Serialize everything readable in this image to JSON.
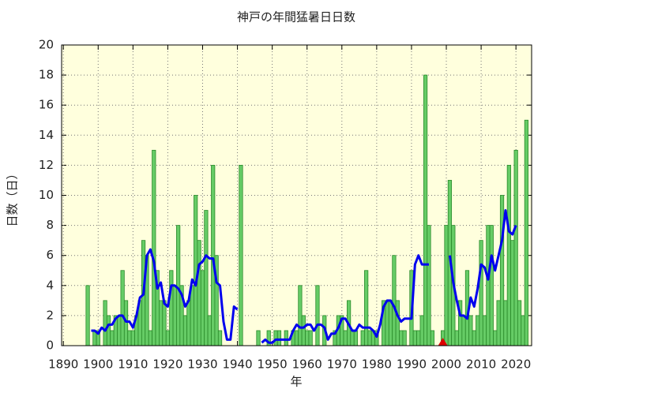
{
  "chart_data": {
    "type": "bar",
    "title": "神戸の年間猛暑日日数",
    "xlabel": "年",
    "ylabel": "日数（日）",
    "xlim": [
      1889.5,
      2024.5
    ],
    "ylim": [
      0,
      20
    ],
    "xticks": [
      1890,
      1900,
      1910,
      1920,
      1930,
      1940,
      1950,
      1960,
      1970,
      1980,
      1990,
      2000,
      2010,
      2020
    ],
    "yticks": [
      0,
      2,
      4,
      6,
      8,
      10,
      12,
      14,
      16,
      18,
      20
    ],
    "grid": true,
    "background": "#ffffdd",
    "x": [
      1897,
      1898,
      1899,
      1900,
      1901,
      1902,
      1903,
      1904,
      1905,
      1906,
      1907,
      1908,
      1909,
      1910,
      1911,
      1912,
      1913,
      1914,
      1915,
      1916,
      1917,
      1918,
      1919,
      1920,
      1921,
      1922,
      1923,
      1924,
      1925,
      1926,
      1927,
      1928,
      1929,
      1930,
      1931,
      1932,
      1933,
      1934,
      1935,
      1936,
      1937,
      1938,
      1939,
      1940,
      1941,
      1942,
      1943,
      1944,
      1945,
      1946,
      1947,
      1948,
      1949,
      1950,
      1951,
      1952,
      1953,
      1954,
      1955,
      1956,
      1957,
      1958,
      1959,
      1960,
      1961,
      1962,
      1963,
      1964,
      1965,
      1966,
      1967,
      1968,
      1969,
      1970,
      1971,
      1972,
      1973,
      1974,
      1975,
      1976,
      1977,
      1978,
      1979,
      1980,
      1981,
      1982,
      1983,
      1984,
      1985,
      1986,
      1987,
      1988,
      1989,
      1990,
      1991,
      1992,
      1993,
      1994,
      1995,
      1996,
      1997,
      1998,
      1999,
      2000,
      2001,
      2002,
      2003,
      2004,
      2005,
      2006,
      2007,
      2008,
      2009,
      2010,
      2011,
      2012,
      2013,
      2014,
      2015,
      2016,
      2017,
      2018,
      2019,
      2020,
      2021,
      2022,
      2023
    ],
    "series": [
      {
        "kind": "bar",
        "color": "#66cc66",
        "edge": "#2a8a2a",
        "values": [
          4,
          0,
          1,
          1,
          0,
          3,
          2,
          1,
          2,
          2,
          5,
          3,
          1,
          1,
          2,
          3,
          7,
          6,
          1,
          13,
          5,
          3,
          3,
          1,
          5,
          4,
          8,
          4,
          2,
          3,
          4,
          10,
          7,
          5,
          9,
          2,
          12,
          6,
          1,
          0,
          0,
          0,
          0,
          0,
          12,
          null,
          null,
          null,
          null,
          1,
          0,
          0,
          1,
          0,
          1,
          1,
          0,
          1,
          0,
          1,
          1,
          4,
          2,
          1,
          1,
          0,
          4,
          0,
          2,
          0,
          0,
          1,
          2,
          2,
          1,
          3,
          1,
          1,
          0,
          1,
          5,
          1,
          1,
          1,
          0,
          3,
          3,
          3,
          6,
          3,
          1,
          1,
          0,
          5,
          1,
          1,
          2,
          18,
          8,
          1,
          0,
          0,
          1,
          8,
          11,
          8,
          1,
          3,
          2,
          5,
          2,
          1,
          2,
          7,
          2,
          8,
          8,
          1,
          3,
          10,
          3,
          12,
          7,
          13,
          3,
          2,
          15
        ]
      },
      {
        "kind": "line",
        "color": "#0000ee",
        "values": [
          null,
          1.0,
          1.0,
          0.8,
          1.2,
          1.0,
          1.4,
          1.4,
          1.8,
          2.0,
          2.0,
          1.6,
          1.6,
          1.2,
          2.0,
          3.2,
          3.4,
          6.0,
          6.4,
          5.6,
          3.8,
          4.2,
          2.8,
          2.6,
          4.0,
          4.0,
          3.8,
          3.4,
          2.6,
          3.0,
          4.4,
          4.0,
          5.4,
          5.6,
          6.0,
          5.8,
          5.8,
          4.2,
          4.0,
          1.6,
          0.4,
          0.4,
          2.6,
          2.4,
          null,
          null,
          null,
          null,
          null,
          null,
          0.2,
          0.4,
          0.2,
          0.2,
          0.4,
          0.4,
          0.4,
          0.4,
          0.4,
          1.0,
          1.4,
          1.2,
          1.2,
          1.4,
          1.4,
          1.0,
          1.4,
          1.4,
          1.2,
          0.4,
          0.8,
          0.8,
          1.2,
          1.8,
          1.8,
          1.4,
          1.0,
          1.0,
          1.4,
          1.2,
          1.2,
          1.2,
          1.0,
          0.6,
          1.4,
          2.6,
          3.0,
          3.0,
          2.6,
          2.0,
          1.6,
          1.8,
          1.8,
          1.8,
          5.4,
          6.0,
          5.4,
          5.4,
          5.4,
          null,
          null,
          null,
          null,
          null,
          6.0,
          4.2,
          3.0,
          2.0,
          2.0,
          1.8,
          3.2,
          2.6,
          3.8,
          5.4,
          5.2,
          4.4,
          6.0,
          5.0,
          6.0,
          7.0,
          9.0,
          7.6,
          7.4,
          8.0,
          null,
          null,
          null
        ]
      }
    ],
    "triangle_marker": {
      "x": 1999,
      "y": 0,
      "color": "#dd0000"
    }
  }
}
